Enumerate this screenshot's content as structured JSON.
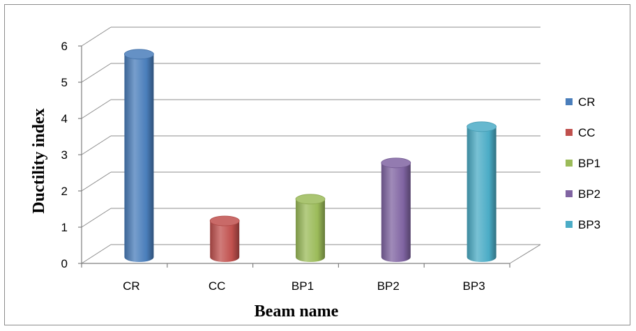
{
  "chart_data": {
    "type": "bar",
    "style": "3d-cylinder",
    "categories": [
      "CR",
      "CC",
      "BP1",
      "BP2",
      "BP3"
    ],
    "values": [
      5.6,
      1.0,
      1.6,
      2.6,
      3.6
    ],
    "colors": [
      "#4a7ebb",
      "#c0504d",
      "#9bbb59",
      "#8064a2",
      "#4bacc6"
    ],
    "xlabel": "Beam name",
    "ylabel": "Ductility index",
    "ylim": [
      0,
      6
    ],
    "yticks": [
      "0",
      "1",
      "2",
      "3",
      "4",
      "5",
      "6"
    ],
    "legend": {
      "position": "right",
      "entries": [
        "CR",
        "CC",
        "BP1",
        "BP2",
        "BP3"
      ]
    },
    "grid": true
  }
}
